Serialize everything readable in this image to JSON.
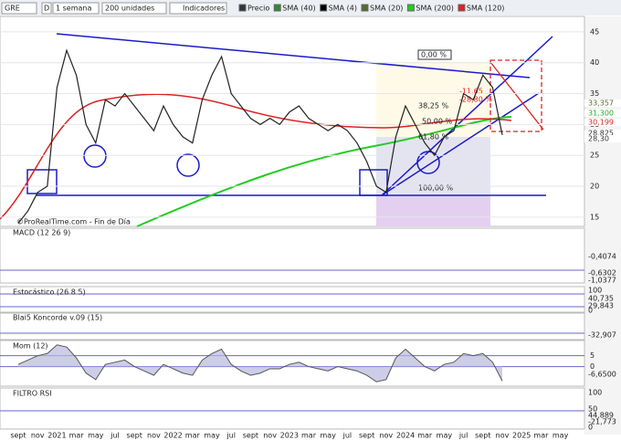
{
  "toolbar": {
    "symbol": "GRE",
    "mode": "D",
    "period": "1 semana",
    "units": "200 unidades",
    "indicators": "Indicadores"
  },
  "legend": [
    {
      "name": "Precio",
      "color": "#333333"
    },
    {
      "name": "SMA (40)",
      "color": "#2e8b2e"
    },
    {
      "name": "SMA (4)",
      "color": "#000000"
    },
    {
      "name": "SMA (20)",
      "color": "#556b2f"
    },
    {
      "name": "SMA (200)",
      "color": "#22cc22"
    },
    {
      "name": "SMA (120)",
      "color": "#dd2222"
    }
  ],
  "price_panel": {
    "credit": "©ProRealTime.com - Fin de Día",
    "ylim": [
      13.5,
      47.5
    ],
    "yticks": [
      45,
      40,
      35,
      30,
      25,
      20,
      15
    ],
    "closes": [
      14,
      16,
      19,
      20,
      36,
      42,
      38,
      30,
      27,
      34,
      33,
      35,
      33,
      31,
      29,
      33,
      30,
      28,
      27,
      34,
      38,
      41,
      35,
      33,
      31,
      30,
      31,
      30,
      32,
      33,
      31,
      30,
      29,
      30,
      29,
      27,
      24,
      20,
      19,
      28,
      33,
      30,
      27,
      25,
      28,
      29,
      35,
      34,
      38,
      36,
      28.3
    ],
    "price_labels": [
      {
        "text": "33,357",
        "color": "#556b2f"
      },
      {
        "text": "31,300",
        "color": "#22aa22"
      },
      {
        "text": "30,199",
        "color": "#dd2222"
      },
      {
        "text": "28,825",
        "color": "#333333"
      },
      {
        "text": "28,30",
        "color": "#333333"
      }
    ],
    "fib_labels": [
      "0,00 %",
      "38,25 %",
      "50,00 %",
      "61,80 %",
      "100,00 %"
    ],
    "change_labels": [
      "-11,65",
      "-28,80 %"
    ]
  },
  "macd": {
    "title": "MACD (12 26 9)",
    "labels": [
      "-0,4074",
      "-0,6302",
      "-1,0377"
    ]
  },
  "stoch": {
    "title": "Estocástico (26 8 5)",
    "ticks": [
      "100",
      "0"
    ],
    "labels": [
      "40,735",
      "29,843"
    ]
  },
  "koncorde": {
    "title": "Blai5 Koncorde v.09 (15)",
    "labels": [
      "-32,907"
    ]
  },
  "mom": {
    "title": "Mom (12)",
    "ylim": [
      -9,
      12
    ],
    "yticks": [
      5,
      0
    ],
    "label": "-6,6500",
    "values": [
      1,
      3,
      5,
      6,
      10,
      9,
      4,
      -3,
      -6,
      1,
      2,
      3,
      0,
      -2,
      -4,
      1,
      -1,
      -3,
      -4,
      3,
      6,
      8,
      1,
      -2,
      -4,
      -3,
      -1,
      -1,
      1,
      2,
      0,
      -1,
      -2,
      0,
      -1,
      -2,
      -4,
      -7,
      -6,
      4,
      8,
      4,
      0,
      -2,
      1,
      2,
      6,
      5,
      6,
      2,
      -6.65
    ]
  },
  "rsi": {
    "title": "FILTRO RSI",
    "ticks": [
      "100",
      "50",
      "0"
    ],
    "labels": [
      "44,889",
      "-21,773"
    ]
  },
  "x_axis": {
    "labels": [
      "sept",
      "nov",
      "2021",
      "mar",
      "may",
      "jul",
      "sept",
      "nov",
      "2022",
      "mar",
      "may",
      "jul",
      "sept",
      "nov",
      "2023",
      "mar",
      "may",
      "jul",
      "sept",
      "nov",
      "2024",
      "mar",
      "may",
      "jul",
      "sept",
      "nov",
      "2025",
      "mar",
      "may"
    ]
  }
}
